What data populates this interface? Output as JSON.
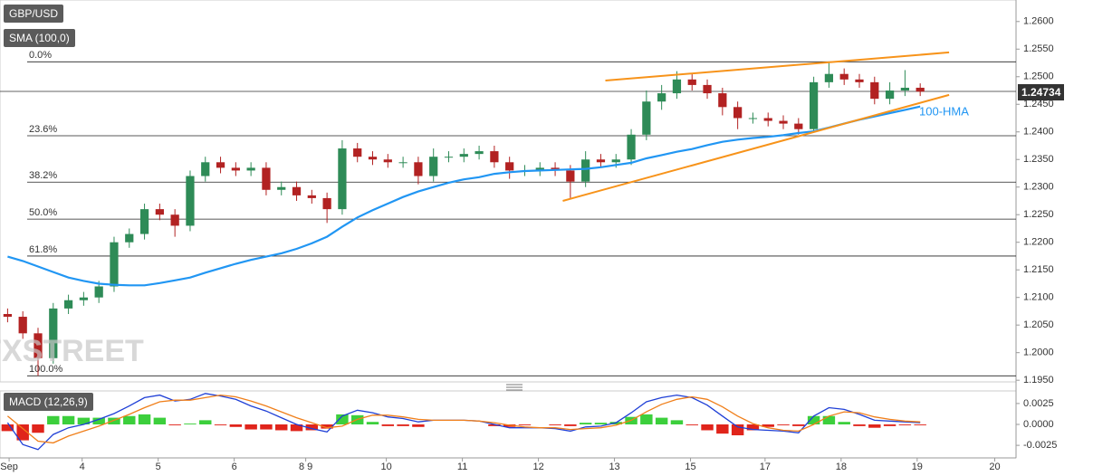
{
  "chart_data": [
    {
      "type": "candlestick",
      "title": "GBP/USD",
      "indicator": "SMA (100,0)",
      "watermark": "FXSTREET",
      "xlim": [
        -0.5,
        66.3
      ],
      "ylim": [
        1.1947,
        1.2639
      ],
      "yticks": [
        {
          "value": 1.195,
          "label": "1.1950"
        },
        {
          "value": 1.2,
          "label": "1.2000"
        },
        {
          "value": 1.205,
          "label": "1.2050"
        },
        {
          "value": 1.21,
          "label": "1.2100"
        },
        {
          "value": 1.215,
          "label": "1.2150"
        },
        {
          "value": 1.22,
          "label": "1.2200"
        },
        {
          "value": 1.225,
          "label": "1.2250"
        },
        {
          "value": 1.23,
          "label": "1.2300"
        },
        {
          "value": 1.235,
          "label": "1.2350"
        },
        {
          "value": 1.24,
          "label": "1.2400"
        },
        {
          "value": 1.245,
          "label": "1.2450"
        },
        {
          "value": 1.25,
          "label": "1.2500"
        },
        {
          "value": 1.255,
          "label": "1.2550"
        },
        {
          "value": 1.26,
          "label": "1.2600"
        }
      ],
      "up_color": "#2e8b57",
      "down_color": "#b22222",
      "open": [
        1.207,
        1.2065,
        1.2035,
        1.199,
        1.208,
        1.2095,
        1.21,
        1.212,
        1.22,
        1.2215,
        1.226,
        1.225,
        1.223,
        1.232,
        1.2345,
        1.2335,
        1.233,
        1.2335,
        1.2295,
        1.23,
        1.2285,
        1.228,
        1.226,
        1.237,
        1.2355,
        1.235,
        1.2345,
        1.2345,
        1.232,
        1.2355,
        1.2355,
        1.236,
        1.2365,
        1.2345,
        1.233,
        1.233,
        1.2335,
        1.233,
        1.231,
        1.235,
        1.2345,
        1.235,
        1.2395,
        1.2455,
        1.247,
        1.2495,
        1.2485,
        1.247,
        1.2445,
        1.2425,
        1.2425,
        1.242,
        1.2415,
        1.2405,
        1.249,
        1.2505,
        1.2495,
        1.249,
        1.246,
        1.2475,
        1.248
      ],
      "high": [
        1.208,
        1.2075,
        1.2045,
        1.209,
        1.2105,
        1.211,
        1.213,
        1.221,
        1.2225,
        1.227,
        1.227,
        1.226,
        1.233,
        1.2355,
        1.2355,
        1.2345,
        1.2345,
        1.2345,
        1.231,
        1.231,
        1.2295,
        1.229,
        1.2385,
        1.238,
        1.2365,
        1.236,
        1.2355,
        1.2355,
        1.237,
        1.2365,
        1.237,
        1.2375,
        1.2375,
        1.2355,
        1.234,
        1.2345,
        1.2345,
        1.234,
        1.2365,
        1.236,
        1.236,
        1.2405,
        1.2475,
        1.2485,
        1.251,
        1.2505,
        1.2495,
        1.248,
        1.2455,
        1.2435,
        1.2435,
        1.243,
        1.2425,
        1.25,
        1.2527,
        1.2515,
        1.2505,
        1.25,
        1.249,
        1.2512,
        1.2488
      ],
      "low": [
        1.2055,
        1.2025,
        1.1958,
        1.198,
        1.207,
        1.2085,
        1.209,
        1.211,
        1.219,
        1.2205,
        1.224,
        1.221,
        1.222,
        1.231,
        1.2325,
        1.232,
        1.232,
        1.2285,
        1.2285,
        1.2275,
        1.227,
        1.2235,
        1.225,
        1.2345,
        1.234,
        1.2335,
        1.2335,
        1.2305,
        1.231,
        1.2345,
        1.2345,
        1.235,
        1.2335,
        1.2315,
        1.232,
        1.232,
        1.232,
        1.228,
        1.23,
        1.2335,
        1.2335,
        1.234,
        1.2385,
        1.244,
        1.246,
        1.2475,
        1.246,
        1.243,
        1.2405,
        1.2415,
        1.241,
        1.2405,
        1.2395,
        1.24,
        1.248,
        1.2485,
        1.248,
        1.245,
        1.245,
        1.2465,
        1.2465
      ],
      "close": [
        1.2065,
        1.2035,
        1.199,
        1.208,
        1.2095,
        1.21,
        1.212,
        1.22,
        1.2215,
        1.226,
        1.225,
        1.223,
        1.232,
        1.2345,
        1.2335,
        1.233,
        1.2335,
        1.2295,
        1.23,
        1.2285,
        1.228,
        1.226,
        1.237,
        1.2355,
        1.235,
        1.2345,
        1.2345,
        1.232,
        1.2355,
        1.2355,
        1.236,
        1.2365,
        1.2345,
        1.233,
        1.233,
        1.2335,
        1.233,
        1.231,
        1.235,
        1.2345,
        1.235,
        1.2395,
        1.2455,
        1.247,
        1.2495,
        1.2485,
        1.247,
        1.2445,
        1.2425,
        1.2425,
        1.242,
        1.2415,
        1.2405,
        1.249,
        1.2505,
        1.2495,
        1.249,
        1.246,
        1.2475,
        1.248,
        1.2473
      ],
      "series": [
        {
          "name": "100-HMA",
          "color": "#2196f3",
          "values": [
            1.2174,
            1.2166,
            1.2156,
            1.2146,
            1.2136,
            1.213,
            1.2125,
            1.2123,
            1.2122,
            1.2122,
            1.2126,
            1.2131,
            1.2136,
            1.2145,
            1.2153,
            1.2161,
            1.2168,
            1.2174,
            1.218,
            1.2188,
            1.2198,
            1.221,
            1.2228,
            1.2245,
            1.2258,
            1.227,
            1.2282,
            1.2292,
            1.23,
            1.2308,
            1.2314,
            1.2318,
            1.2324,
            1.2327,
            1.2329,
            1.233,
            1.2331,
            1.2332,
            1.2333,
            1.2336,
            1.234,
            1.2344,
            1.2352,
            1.2358,
            1.2364,
            1.2369,
            1.2376,
            1.2382,
            1.2386,
            1.2389,
            1.2391,
            1.2394,
            1.2398,
            1.2401,
            1.2408,
            1.2415,
            1.2422,
            1.2428,
            1.2434,
            1.244,
            1.2446
          ]
        }
      ],
      "trendlines": [
        {
          "color": "#f7931a",
          "x": [
            39.3,
            61.9
          ],
          "y": [
            1.2493,
            1.2544
          ]
        },
        {
          "color": "#f7931a",
          "x": [
            36.5,
            61.9
          ],
          "y": [
            1.2275,
            1.2467
          ]
        }
      ],
      "fib_levels": [
        {
          "label": "0.0%",
          "value": 1.2527
        },
        {
          "label": "23.6%",
          "value": 1.2393
        },
        {
          "label": "38.2%",
          "value": 1.2309
        },
        {
          "label": "50.0%",
          "value": 1.2242
        },
        {
          "label": "61.8%",
          "value": 1.2175
        },
        {
          "label": "100.0%",
          "value": 1.1958
        }
      ],
      "last_price": 1.24734
    },
    {
      "type": "macd",
      "title": "MACD (12,26,9)",
      "xlim": [
        -0.5,
        66.3
      ],
      "ylim": [
        -0.004,
        0.004
      ],
      "xticks": [
        {
          "value": 0.1,
          "label": "Sep"
        },
        {
          "value": 4.9,
          "label": "4"
        },
        {
          "value": 9.9,
          "label": "5"
        },
        {
          "value": 14.9,
          "label": "6"
        },
        {
          "value": 19.6,
          "label": "8 9"
        },
        {
          "value": 24.9,
          "label": "10"
        },
        {
          "value": 29.9,
          "label": "11"
        },
        {
          "value": 34.9,
          "label": "12"
        },
        {
          "value": 39.9,
          "label": "13"
        },
        {
          "value": 44.9,
          "label": "15"
        },
        {
          "value": 49.8,
          "label": "17"
        },
        {
          "value": 54.8,
          "label": "18"
        },
        {
          "value": 59.8,
          "label": "19"
        },
        {
          "value": 64.9,
          "label": "20"
        }
      ],
      "yticks": [
        {
          "value": 0.0025,
          "label": "0.0025"
        },
        {
          "value": 0,
          "label": "0.0000"
        },
        {
          "value": -0.0025,
          "label": "-0.0025"
        }
      ],
      "hist_up_color": "#3ccf3c",
      "hist_down_color": "#e0241b",
      "histogram": [
        -0.0008,
        -0.0019,
        -0.001,
        0.001,
        0.001,
        0.0008,
        0.0008,
        0.0008,
        0.001,
        0.0012,
        0.0008,
        -0.0001,
        0.0001,
        0.0005,
        -0.0001,
        -0.0003,
        -0.0006,
        -0.0006,
        -0.0007,
        -0.0008,
        -0.0007,
        -0.0005,
        0.0012,
        0.0011,
        0.0003,
        -0.0002,
        -0.0002,
        -0.0003,
        0.0,
        0.0,
        0.0,
        0.0,
        -0.0002,
        -0.0003,
        -0.0001,
        0.0,
        -0.0001,
        -0.0002,
        0.0002,
        0.0002,
        0.0003,
        0.0009,
        0.0012,
        0.0008,
        0.0005,
        -0.0001,
        -0.0007,
        -0.0011,
        -0.0013,
        -0.0007,
        -0.0003,
        -0.0001,
        -0.0002,
        0.001,
        0.001,
        0.0003,
        -0.0002,
        -0.0004,
        -0.0002,
        -0.0001,
        -0.0001
      ],
      "series": [
        {
          "color": "#1f3fd6",
          "values": [
            0.0002,
            -0.0024,
            -0.003,
            -0.0012,
            -0.0004,
            0.0,
            0.0006,
            0.0013,
            0.0022,
            0.0032,
            0.0035,
            0.0028,
            0.003,
            0.0037,
            0.0034,
            0.003,
            0.0022,
            0.0016,
            0.0008,
            0.0,
            -0.0005,
            -0.0009,
            0.001,
            0.0017,
            0.0014,
            0.0009,
            0.0007,
            0.0003,
            0.0005,
            0.0005,
            0.0005,
            0.0004,
            0.0,
            -0.0004,
            -0.0004,
            -0.0004,
            -0.0005,
            -0.0008,
            -0.0003,
            -0.0002,
            0.0002,
            0.0014,
            0.0027,
            0.0032,
            0.0035,
            0.0032,
            0.0023,
            0.001,
            -0.0003,
            -0.0006,
            -0.0007,
            -0.0008,
            -0.001,
            0.001,
            0.002,
            0.0018,
            0.0012,
            0.0005,
            0.0004,
            0.0003,
            0.0002
          ]
        },
        {
          "color": "#f07f1a",
          "values": [
            0.001,
            -0.0005,
            -0.002,
            -0.0022,
            -0.0014,
            -0.0008,
            -0.0002,
            0.0005,
            0.0012,
            0.002,
            0.0027,
            0.0029,
            0.0029,
            0.0032,
            0.0035,
            0.0033,
            0.0028,
            0.0022,
            0.0015,
            0.0008,
            0.0002,
            -0.0004,
            -0.0002,
            0.0006,
            0.0011,
            0.0011,
            0.0009,
            0.0006,
            0.0005,
            0.0005,
            0.0005,
            0.0004,
            0.0002,
            -0.0001,
            -0.0003,
            -0.0004,
            -0.0004,
            -0.0006,
            -0.0005,
            -0.0004,
            -0.0001,
            0.0005,
            0.0015,
            0.0024,
            0.003,
            0.0033,
            0.003,
            0.0021,
            0.001,
            0.0001,
            -0.0004,
            -0.0007,
            -0.0008,
            0.0,
            0.001,
            0.0015,
            0.0014,
            0.0009,
            0.0006,
            0.0004,
            0.0003
          ]
        }
      ]
    }
  ]
}
